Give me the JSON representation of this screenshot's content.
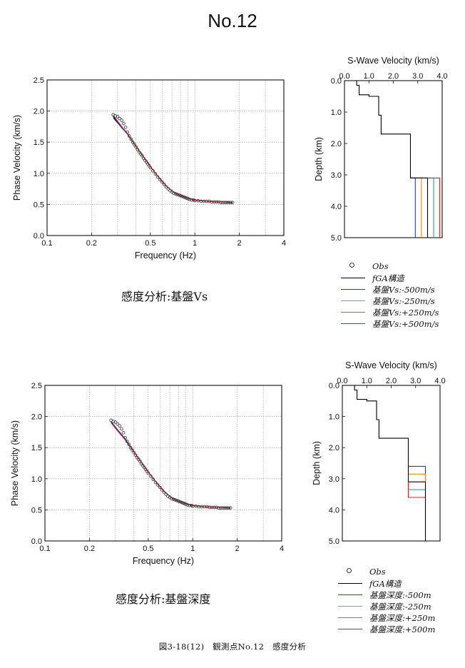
{
  "page_title": "No.12",
  "captions": {
    "top": "感度分析:基盤Vs",
    "bottom": "感度分析:基盤深度",
    "figure": "図3-18(12)　観測点No.12　感度分析"
  },
  "legend_top": {
    "items": [
      {
        "label": "Obs",
        "kind": "marker",
        "color": "#333333"
      },
      {
        "label": "fGA構造",
        "kind": "line",
        "color": "#000000"
      },
      {
        "label": "基盤Vs:-500m/s",
        "kind": "line",
        "color": "#2b3bb5"
      },
      {
        "label": "基盤Vs:-250m/s",
        "kind": "line",
        "color": "#e08a1e"
      },
      {
        "label": "基盤Vs:+250m/s",
        "kind": "line",
        "color": "#2aa39a"
      },
      {
        "label": "基盤Vs:+500m/s",
        "kind": "line",
        "color": "#d42020"
      }
    ]
  },
  "legend_bottom": {
    "items": [
      {
        "label": "Obs",
        "kind": "marker",
        "color": "#333333"
      },
      {
        "label": "fGA構造",
        "kind": "line",
        "color": "#000000"
      },
      {
        "label": "基盤深度:-500m",
        "kind": "line",
        "color": "#2b3bb5"
      },
      {
        "label": "基盤深度:-250m",
        "kind": "line",
        "color": "#e08a1e"
      },
      {
        "label": "基盤深度:+250m",
        "kind": "line",
        "color": "#2aa39a"
      },
      {
        "label": "基盤深度:+500m",
        "kind": "line",
        "color": "#d42020"
      }
    ]
  },
  "chart_data": [
    {
      "id": "disp_top",
      "type": "scatter",
      "xlabel": "Frequency (Hz)",
      "ylabel": "Phase Velocity (km/s)",
      "xscale": "log",
      "xlim": [
        0.1,
        4
      ],
      "ylim": [
        0,
        2.5
      ],
      "xticks": [
        0.1,
        0.2,
        0.5,
        1,
        2,
        4
      ],
      "xtick_labels": [
        "0.1",
        "0.2",
        "0.5",
        "1",
        "2",
        "4"
      ],
      "yticks": [
        0,
        0.5,
        1,
        1.5,
        2,
        2.5
      ],
      "ytick_labels": [
        "0.0",
        "0.5",
        "1.0",
        "1.5",
        "2.0",
        "2.5"
      ],
      "grid": true,
      "series": [
        {
          "name": "Obs",
          "style": "marker",
          "color": "#333333",
          "x": [
            0.28,
            0.29,
            0.3,
            0.31,
            0.32,
            0.33,
            0.34,
            0.35,
            0.36,
            0.37,
            0.38,
            0.39,
            0.4,
            0.41,
            0.42,
            0.43,
            0.44,
            0.45,
            0.46,
            0.47,
            0.48,
            0.49,
            0.5,
            0.52,
            0.54,
            0.56,
            0.58,
            0.6,
            0.62,
            0.64,
            0.66,
            0.68,
            0.7,
            0.72,
            0.74,
            0.76,
            0.78,
            0.8,
            0.82,
            0.84,
            0.86,
            0.88,
            0.9,
            0.92,
            0.95,
            0.98,
            1.0,
            1.05,
            1.1,
            1.15,
            1.2,
            1.25,
            1.3,
            1.35,
            1.4,
            1.45,
            1.5,
            1.55,
            1.6,
            1.65,
            1.7,
            1.75,
            1.8
          ],
          "y": [
            1.94,
            1.92,
            1.91,
            1.88,
            1.85,
            1.8,
            1.74,
            1.66,
            1.6,
            1.55,
            1.5,
            1.46,
            1.42,
            1.38,
            1.34,
            1.31,
            1.28,
            1.24,
            1.21,
            1.18,
            1.15,
            1.12,
            1.09,
            1.04,
            0.99,
            0.94,
            0.9,
            0.86,
            0.82,
            0.78,
            0.75,
            0.72,
            0.7,
            0.68,
            0.67,
            0.66,
            0.65,
            0.64,
            0.63,
            0.62,
            0.61,
            0.6,
            0.59,
            0.58,
            0.57,
            0.57,
            0.56,
            0.56,
            0.55,
            0.55,
            0.55,
            0.55,
            0.54,
            0.54,
            0.54,
            0.54,
            0.53,
            0.53,
            0.53,
            0.53,
            0.53,
            0.53,
            0.53
          ]
        },
        {
          "name": "fGA構造",
          "style": "line",
          "color": "#000000",
          "x": [
            0.28,
            0.3,
            0.32,
            0.35,
            0.4,
            0.45,
            0.5,
            0.55,
            0.6,
            0.65,
            0.7,
            0.75,
            0.8,
            0.9,
            1.0,
            1.2,
            1.4,
            1.6,
            1.8
          ],
          "y": [
            1.91,
            1.82,
            1.74,
            1.63,
            1.43,
            1.26,
            1.11,
            0.98,
            0.87,
            0.78,
            0.72,
            0.67,
            0.64,
            0.6,
            0.57,
            0.55,
            0.54,
            0.54,
            0.53
          ]
        },
        {
          "name": "基盤Vs:-500m/s",
          "style": "line",
          "color": "#2b3bb5",
          "x": [
            0.28,
            0.3,
            0.32,
            0.35,
            0.4,
            0.45,
            0.5,
            0.55,
            0.6,
            0.65,
            0.7,
            0.75,
            0.8,
            0.9,
            1.0,
            1.2,
            1.4,
            1.6,
            1.8
          ],
          "y": [
            1.89,
            1.81,
            1.73,
            1.63,
            1.43,
            1.26,
            1.11,
            0.98,
            0.87,
            0.78,
            0.72,
            0.67,
            0.64,
            0.6,
            0.57,
            0.55,
            0.54,
            0.54,
            0.53
          ]
        },
        {
          "name": "基盤Vs:+500m/s",
          "style": "line",
          "color": "#d42020",
          "x": [
            0.28,
            0.3,
            0.32,
            0.35,
            0.4,
            0.45,
            0.5,
            0.55,
            0.6,
            0.65,
            0.7,
            0.75,
            0.8,
            0.9,
            1.0,
            1.2,
            1.4,
            1.6,
            1.8
          ],
          "y": [
            1.93,
            1.84,
            1.75,
            1.64,
            1.43,
            1.26,
            1.11,
            0.98,
            0.87,
            0.78,
            0.72,
            0.67,
            0.64,
            0.6,
            0.57,
            0.55,
            0.54,
            0.54,
            0.53
          ]
        }
      ]
    },
    {
      "id": "vs_top",
      "type": "line",
      "title": "S-Wave Velocity (km/s)",
      "ylabel": "Depth (km)",
      "xlim": [
        0,
        4
      ],
      "ylim": [
        0,
        5
      ],
      "y_inverted": true,
      "x_axis_position": "top",
      "xticks": [
        0,
        1,
        2,
        3,
        4
      ],
      "xtick_labels": [
        "0.0",
        "1.0",
        "2.0",
        "3.0",
        "4.0"
      ],
      "yticks": [
        0,
        1,
        2,
        3,
        4,
        5
      ],
      "ytick_labels": [
        "0.0",
        "1.0",
        "2.0",
        "3.0",
        "4.0",
        "5.0"
      ],
      "series": [
        {
          "name": "fGA構造",
          "color": "#000000",
          "x": [
            0.5,
            0.5,
            0.6,
            0.6,
            1.0,
            1.0,
            1.4,
            1.4,
            1.5,
            1.5,
            2.7,
            2.7,
            3.4,
            3.4
          ],
          "y": [
            0,
            0.15,
            0.15,
            0.45,
            0.45,
            0.5,
            0.5,
            1.1,
            1.1,
            1.7,
            1.7,
            3.1,
            3.1,
            5.0
          ]
        },
        {
          "name": "基盤Vs:-500m/s",
          "color": "#2b3bb5",
          "x": [
            2.7,
            2.9,
            2.9
          ],
          "y": [
            3.1,
            3.1,
            5.0
          ]
        },
        {
          "name": "基盤Vs:-250m/s",
          "color": "#e08a1e",
          "x": [
            2.7,
            3.15,
            3.15
          ],
          "y": [
            3.1,
            3.1,
            5.0
          ]
        },
        {
          "name": "基盤Vs:+250m/s",
          "color": "#2aa39a",
          "x": [
            2.7,
            3.65,
            3.65
          ],
          "y": [
            3.1,
            3.1,
            5.0
          ]
        },
        {
          "name": "基盤Vs:+500m/s",
          "color": "#d42020",
          "x": [
            2.7,
            3.9,
            3.9
          ],
          "y": [
            3.1,
            3.1,
            5.0
          ]
        }
      ]
    },
    {
      "id": "disp_bottom",
      "type": "scatter",
      "xlabel": "Frequency (Hz)",
      "ylabel": "Phase Velocity (km/s)",
      "xscale": "log",
      "xlim": [
        0.1,
        4
      ],
      "ylim": [
        0,
        2.5
      ],
      "xticks": [
        0.1,
        0.2,
        0.5,
        1,
        2,
        4
      ],
      "xtick_labels": [
        "0.1",
        "0.2",
        "0.5",
        "1",
        "2",
        "4"
      ],
      "yticks": [
        0,
        0.5,
        1,
        1.5,
        2,
        2.5
      ],
      "ytick_labels": [
        "0.0",
        "0.5",
        "1.0",
        "1.5",
        "2.0",
        "2.5"
      ],
      "grid": true,
      "series": [
        {
          "name": "Obs",
          "style": "marker",
          "color": "#333333",
          "x": [
            0.28,
            0.29,
            0.3,
            0.31,
            0.32,
            0.33,
            0.34,
            0.35,
            0.36,
            0.37,
            0.38,
            0.39,
            0.4,
            0.41,
            0.42,
            0.43,
            0.44,
            0.45,
            0.46,
            0.47,
            0.48,
            0.49,
            0.5,
            0.52,
            0.54,
            0.56,
            0.58,
            0.6,
            0.62,
            0.64,
            0.66,
            0.68,
            0.7,
            0.72,
            0.74,
            0.76,
            0.78,
            0.8,
            0.82,
            0.84,
            0.86,
            0.88,
            0.9,
            0.92,
            0.95,
            0.98,
            1.0,
            1.05,
            1.1,
            1.15,
            1.2,
            1.25,
            1.3,
            1.35,
            1.4,
            1.45,
            1.5,
            1.55,
            1.6,
            1.65,
            1.7,
            1.75,
            1.8
          ],
          "y": [
            1.94,
            1.92,
            1.91,
            1.88,
            1.85,
            1.8,
            1.74,
            1.66,
            1.6,
            1.55,
            1.5,
            1.46,
            1.42,
            1.38,
            1.34,
            1.31,
            1.28,
            1.24,
            1.21,
            1.18,
            1.15,
            1.12,
            1.09,
            1.04,
            0.99,
            0.94,
            0.9,
            0.86,
            0.82,
            0.78,
            0.75,
            0.72,
            0.7,
            0.68,
            0.67,
            0.66,
            0.65,
            0.64,
            0.63,
            0.62,
            0.61,
            0.6,
            0.59,
            0.58,
            0.57,
            0.57,
            0.56,
            0.56,
            0.55,
            0.55,
            0.55,
            0.55,
            0.54,
            0.54,
            0.54,
            0.54,
            0.53,
            0.53,
            0.53,
            0.53,
            0.53,
            0.53,
            0.53
          ]
        },
        {
          "name": "fGA構造",
          "style": "line",
          "color": "#000000",
          "x": [
            0.28,
            0.3,
            0.32,
            0.35,
            0.4,
            0.45,
            0.5,
            0.55,
            0.6,
            0.65,
            0.7,
            0.75,
            0.8,
            0.9,
            1.0,
            1.2,
            1.4,
            1.6,
            1.8
          ],
          "y": [
            1.91,
            1.82,
            1.74,
            1.63,
            1.43,
            1.26,
            1.11,
            0.98,
            0.87,
            0.78,
            0.72,
            0.67,
            0.64,
            0.6,
            0.57,
            0.55,
            0.54,
            0.54,
            0.53
          ]
        },
        {
          "name": "基盤深度:-500m",
          "style": "line",
          "color": "#2b3bb5",
          "x": [
            0.28,
            0.3,
            0.32,
            0.35,
            0.4,
            0.45,
            0.5,
            0.55,
            0.6,
            0.65,
            0.7,
            0.75,
            0.8,
            0.9,
            1.0,
            1.2,
            1.4,
            1.6,
            1.8
          ],
          "y": [
            1.92,
            1.83,
            1.75,
            1.64,
            1.43,
            1.26,
            1.11,
            0.98,
            0.87,
            0.78,
            0.72,
            0.67,
            0.64,
            0.6,
            0.57,
            0.55,
            0.54,
            0.54,
            0.53
          ]
        },
        {
          "name": "基盤深度:+500m",
          "style": "line",
          "color": "#d42020",
          "x": [
            0.28,
            0.3,
            0.32,
            0.35,
            0.4,
            0.45,
            0.5,
            0.55,
            0.6,
            0.65,
            0.7,
            0.75,
            0.8,
            0.9,
            1.0,
            1.2,
            1.4,
            1.6,
            1.8
          ],
          "y": [
            1.9,
            1.81,
            1.73,
            1.62,
            1.43,
            1.26,
            1.11,
            0.98,
            0.87,
            0.78,
            0.72,
            0.67,
            0.64,
            0.6,
            0.57,
            0.55,
            0.54,
            0.54,
            0.53
          ]
        }
      ]
    },
    {
      "id": "vs_bottom",
      "type": "line",
      "title": "S-Wave Velocity (km/s)",
      "ylabel": "Depth (km)",
      "xlim": [
        0,
        4
      ],
      "ylim": [
        0,
        5
      ],
      "y_inverted": true,
      "x_axis_position": "top",
      "xticks": [
        0,
        1,
        2,
        3,
        4
      ],
      "xtick_labels": [
        "0.0",
        "1.0",
        "2.0",
        "3.0",
        "4.0"
      ],
      "yticks": [
        0,
        1,
        2,
        3,
        4,
        5
      ],
      "ytick_labels": [
        "0.0",
        "1.0",
        "2.0",
        "3.0",
        "4.0",
        "5.0"
      ],
      "series": [
        {
          "name": "fGA構造",
          "color": "#000000",
          "x": [
            0.5,
            0.5,
            0.6,
            0.6,
            1.0,
            1.0,
            1.4,
            1.4,
            1.5,
            1.5,
            2.7,
            2.7,
            3.4,
            3.4
          ],
          "y": [
            0,
            0.15,
            0.15,
            0.45,
            0.45,
            0.5,
            0.5,
            1.1,
            1.1,
            1.7,
            1.7,
            3.1,
            3.1,
            5.0
          ]
        },
        {
          "name": "基盤深度:-500m",
          "color": "#2b3bb5",
          "x": [
            2.7,
            3.4,
            3.4
          ],
          "y": [
            2.6,
            2.6,
            3.1
          ]
        },
        {
          "name": "基盤深度:-250m",
          "color": "#e08a1e",
          "x": [
            2.7,
            3.4,
            3.4
          ],
          "y": [
            2.85,
            2.85,
            3.1
          ]
        },
        {
          "name": "基盤深度:+250m",
          "color": "#2aa39a",
          "x": [
            2.7,
            2.7,
            3.4
          ],
          "y": [
            3.1,
            3.35,
            3.35
          ]
        },
        {
          "name": "基盤深度:+500m",
          "color": "#d42020",
          "x": [
            2.7,
            2.7,
            3.4,
            3.4
          ],
          "y": [
            3.1,
            3.6,
            3.6,
            3.35
          ]
        }
      ]
    }
  ]
}
